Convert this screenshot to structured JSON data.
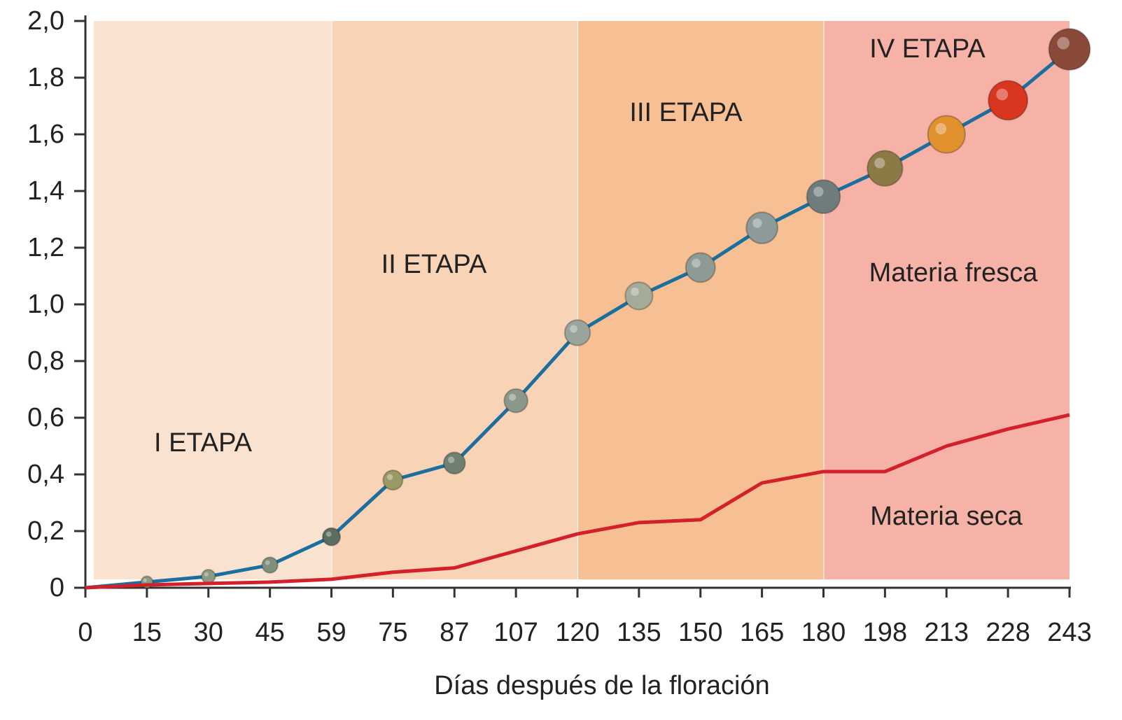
{
  "chart_data": {
    "type": "line",
    "x_label": "Días después de la floración",
    "categories": [
      "0",
      "15",
      "30",
      "45",
      "59",
      "75",
      "87",
      "107",
      "120",
      "135",
      "150",
      "165",
      "180",
      "198",
      "213",
      "228",
      "243"
    ],
    "series": [
      {
        "name": "Materia fresca",
        "color": "#1b6f9f",
        "values": [
          0,
          0.02,
          0.04,
          0.08,
          0.18,
          0.38,
          0.44,
          0.66,
          0.9,
          1.03,
          1.13,
          1.27,
          1.38,
          1.48,
          1.6,
          1.72,
          1.9
        ],
        "marker_colors": [
          "#8c9a84",
          "#8c9a84",
          "#8c9a84",
          "#7f8f7c",
          "#5d6d60",
          "#9a9a64",
          "#6f7f72",
          "#8a978a",
          "#9aa49a",
          "#a4ab98",
          "#8e9a94",
          "#8c9a9a",
          "#6f7c7c",
          "#8c7a46",
          "#e0902c",
          "#d8361e",
          "#8a4a3a"
        ]
      },
      {
        "name": "Materia seca",
        "color": "#d4202a",
        "values": [
          0,
          0.01,
          0.015,
          0.02,
          0.03,
          0.055,
          0.07,
          0.13,
          0.19,
          0.23,
          0.24,
          0.37,
          0.41,
          0.41,
          0.5,
          0.56,
          0.61
        ]
      }
    ],
    "stages": [
      {
        "label": "I ETAPA",
        "from": "0",
        "to": "59",
        "color": "#f9e3d0"
      },
      {
        "label": "II ETAPA",
        "from": "59",
        "to": "120",
        "color": "#f9d3b5"
      },
      {
        "label": "III ETAPA",
        "from": "120",
        "to": "180",
        "color": "#f7bf94"
      },
      {
        "label": "IV ETAPA",
        "from": "180",
        "to": "243",
        "color": "#f6b2a6"
      }
    ],
    "ylim": [
      0,
      2.0
    ],
    "yticks": [
      0,
      {
        "value": 0.2,
        "label": "0,2"
      },
      {
        "value": 0.4,
        "label": "0,4"
      },
      {
        "value": 0.6,
        "label": "0,6"
      },
      {
        "value": 0.8,
        "label": "0,8"
      },
      {
        "value": 1.0,
        "label": "1,0"
      },
      {
        "value": 1.2,
        "label": "1,2"
      },
      {
        "value": 1.4,
        "label": "1,4"
      },
      {
        "value": 1.6,
        "label": "1,6"
      },
      {
        "value": 1.8,
        "label": "1,8"
      },
      {
        "value": 2.0,
        "label": "2,0"
      }
    ]
  }
}
